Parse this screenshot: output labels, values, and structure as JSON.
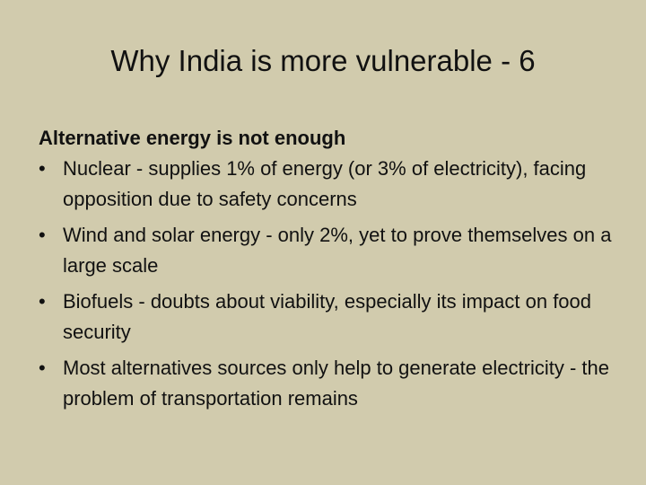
{
  "slide": {
    "title": "Why India is more vulnerable - 6",
    "heading": "Alternative energy is not enough",
    "bullet_glyph": "•",
    "bullets": [
      "Nuclear - supplies  1% of energy (or 3% of electricity), facing opposition due to safety concerns",
      "Wind and solar energy - only 2%, yet to prove themselves on a large scale",
      "Biofuels - doubts about viability, especially its impact on food security",
      "Most alternatives sources only help to generate electricity - the problem of transportation remains"
    ]
  },
  "colors": {
    "background": "#d1cbad",
    "text": "#111111"
  }
}
